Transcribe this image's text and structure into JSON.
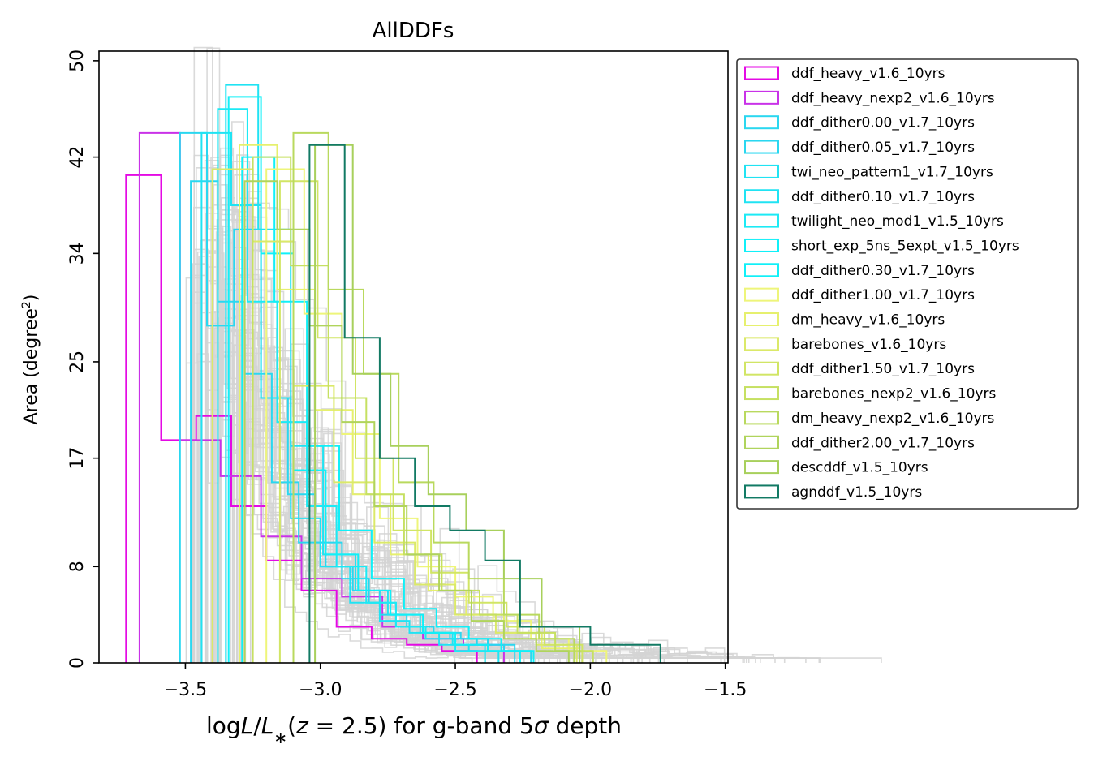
{
  "chart_data": {
    "type": "histogram-step",
    "title": "AllDDFs",
    "xlabel": "logL/L∗(z = 2.5) for g-band 5σ depth",
    "xlabel_parts": [
      "log",
      "L",
      "/",
      "L",
      "∗",
      "(",
      "z",
      " = 2.5) for g-band 5",
      "σ",
      " depth"
    ],
    "ylabel": "Area (degree",
    "ylabel_sup": "2",
    "ylabel_close": ")",
    "xlim": [
      -3.82,
      -1.49
    ],
    "ylim": [
      0,
      50.8
    ],
    "xticks": [
      -3.5,
      -3.0,
      -2.5,
      -2.0,
      -1.5
    ],
    "xtick_labels": [
      "−3.5",
      "−3.0",
      "−2.5",
      "−2.0",
      "−1.5"
    ],
    "yticks": [
      0,
      8,
      17,
      25,
      34,
      42,
      50
    ],
    "ytick_labels": [
      "0",
      "8",
      "17",
      "25",
      "34",
      "42",
      "50"
    ],
    "grid": false,
    "legend_position": "outside-right-top",
    "background_series_color": "#d3d3d3",
    "series": [
      {
        "name": "ddf_heavy_v1.6_10yrs",
        "color": "#e40ae4",
        "edges": [
          -3.72,
          -3.59,
          -3.46,
          -3.33,
          -3.2,
          -3.07,
          -2.94,
          -2.81,
          -2.68,
          -2.55,
          -2.42
        ],
        "values": [
          40.5,
          18.5,
          20.5,
          13,
          8.5,
          6,
          3,
          2,
          1.5,
          1
        ]
      },
      {
        "name": "ddf_heavy_nexp2_v1.6_10yrs",
        "color": "#c932e8",
        "edges": [
          -3.67,
          -3.52,
          -3.37,
          -3.22,
          -3.07,
          -2.92,
          -2.77,
          -2.62,
          -2.47,
          -2.32
        ],
        "values": [
          44,
          18.5,
          15.5,
          10.5,
          7,
          5.5,
          3,
          2,
          1.5
        ]
      },
      {
        "name": "ddf_dither0.00_v1.7_10yrs",
        "color": "#2ad7f0",
        "edges": [
          -3.52,
          -3.42,
          -3.32,
          -3.22,
          -3.12,
          -3.02,
          -2.92,
          -2.82,
          -2.72,
          -2.62,
          -2.52,
          -2.42,
          -2.32,
          -2.22
        ],
        "values": [
          44,
          28,
          36,
          22,
          14,
          10,
          7,
          5,
          3,
          2.5,
          2,
          1.5,
          1
        ]
      },
      {
        "name": "ddf_dither0.05_v1.7_10yrs",
        "color": "#2ad7f0",
        "edges": [
          -3.48,
          -3.38,
          -3.28,
          -3.18,
          -3.08,
          -2.98,
          -2.88,
          -2.78,
          -2.68,
          -2.58,
          -2.48,
          -2.38,
          -2.28
        ],
        "values": [
          40,
          30,
          24,
          15,
          10,
          8,
          6,
          4,
          3,
          2.5,
          2,
          1.5
        ]
      },
      {
        "name": "twi_neo_pattern1_v1.7_10yrs",
        "color": "#20e3f3",
        "edges": [
          -3.35,
          -3.23,
          -3.11,
          -2.99,
          -2.87,
          -2.75,
          -2.63,
          -2.51,
          -2.39
        ],
        "values": [
          48,
          36,
          18,
          9,
          6,
          4,
          2.5,
          1.5
        ]
      },
      {
        "name": "ddf_dither0.10_v1.7_10yrs",
        "color": "#20e3f3",
        "edges": [
          -3.44,
          -3.33,
          -3.22,
          -3.11,
          -3.0,
          -2.89,
          -2.78,
          -2.67,
          -2.56,
          -2.45,
          -2.34
        ],
        "values": [
          44,
          38,
          22,
          12,
          8,
          5,
          3.5,
          2.5,
          1.5,
          1
        ]
      },
      {
        "name": "twilight_neo_mod1_v1.5_10yrs",
        "color": "#1ceaf5",
        "edges": [
          -3.38,
          -3.27,
          -3.16,
          -3.05,
          -2.94,
          -2.83,
          -2.72,
          -2.61,
          -2.5,
          -2.39
        ],
        "values": [
          46,
          30,
          20,
          13,
          8,
          5,
          3,
          2,
          1
        ]
      },
      {
        "name": "short_exp_5ns_5expt_v1.5_10yrs",
        "color": "#10f0f8",
        "edges": [
          -3.34,
          -3.22,
          -3.1,
          -2.98,
          -2.86,
          -2.74,
          -2.62,
          -2.5,
          -2.38,
          -2.26
        ],
        "values": [
          47,
          34,
          16,
          9,
          6,
          4,
          2.5,
          1.5,
          1
        ]
      },
      {
        "name": "ddf_dither0.30_v1.7_10yrs",
        "color": "#10f0f8",
        "edges": [
          -3.29,
          -3.17,
          -3.05,
          -2.93,
          -2.81,
          -2.69,
          -2.57,
          -2.45,
          -2.33,
          -2.21
        ],
        "values": [
          42,
          30,
          18,
          11,
          7,
          4.5,
          3,
          2,
          1
        ]
      },
      {
        "name": "ddf_dither1.00_v1.7_10yrs",
        "color": "#eef57a",
        "edges": [
          -3.2,
          -3.06,
          -2.92,
          -2.78,
          -2.64,
          -2.5,
          -2.36,
          -2.22,
          -2.08,
          -1.94
        ],
        "values": [
          41,
          29,
          19,
          12,
          8,
          5.5,
          3.5,
          2,
          1
        ]
      },
      {
        "name": "dm_heavy_v1.6_10yrs",
        "color": "#e6f06e",
        "edges": [
          -3.3,
          -3.16,
          -3.02,
          -2.88,
          -2.74,
          -2.6,
          -2.46,
          -2.32,
          -2.18,
          -2.04
        ],
        "values": [
          43,
          31,
          21,
          14,
          9,
          6,
          4,
          2.5,
          1.2
        ]
      },
      {
        "name": "barebones_v1.6_10yrs",
        "color": "#dbe969",
        "edges": [
          -3.4,
          -3.25,
          -3.1,
          -2.95,
          -2.8,
          -2.65,
          -2.5,
          -2.35,
          -2.2,
          -2.05
        ],
        "values": [
          41,
          35,
          23,
          15,
          10,
          6.5,
          4,
          2.5,
          1.5
        ]
      },
      {
        "name": "ddf_dither1.50_v1.7_10yrs",
        "color": "#d1e565",
        "edges": [
          -3.15,
          -3.01,
          -2.87,
          -2.73,
          -2.59,
          -2.45,
          -2.31,
          -2.17,
          -2.03
        ],
        "values": [
          40,
          27,
          17,
          11,
          7.5,
          5,
          3,
          1.5
        ]
      },
      {
        "name": "barebones_nexp2_v1.6_10yrs",
        "color": "#c6e062",
        "edges": [
          -3.25,
          -3.11,
          -2.97,
          -2.83,
          -2.69,
          -2.55,
          -2.41,
          -2.27,
          -2.13,
          -1.99
        ],
        "values": [
          42,
          33,
          22,
          14,
          9,
          6,
          4,
          2.5,
          1
        ]
      },
      {
        "name": "dm_heavy_nexp2_v1.6_10yrs",
        "color": "#b9d95e",
        "edges": [
          -3.1,
          -2.97,
          -2.84,
          -2.71,
          -2.58,
          -2.45,
          -2.32,
          -2.19,
          -2.06
        ],
        "values": [
          44,
          31,
          24,
          15,
          10,
          7,
          4,
          2
        ]
      },
      {
        "name": "ddf_dither2.00_v1.7_10yrs",
        "color": "#b0d45c",
        "edges": [
          -3.28,
          -3.16,
          -3.04,
          -2.92,
          -2.8,
          -2.68,
          -2.56,
          -2.44,
          -2.32,
          -2.2,
          -2.08
        ],
        "values": [
          40,
          36,
          28,
          20,
          13,
          9,
          6,
          3.5,
          2,
          1
        ]
      },
      {
        "name": "descddf_v1.5_10yrs",
        "color": "#a8d05c",
        "edges": [
          -3.02,
          -2.88,
          -2.74,
          -2.6,
          -2.46,
          -2.32,
          -2.18,
          -2.04
        ],
        "values": [
          43,
          24,
          18,
          14,
          11,
          7,
          3
        ]
      },
      {
        "name": "agnddf_v1.5_10yrs",
        "color": "#127a64",
        "edges": [
          -3.04,
          -2.91,
          -2.78,
          -2.65,
          -2.52,
          -2.39,
          -2.26,
          -2.13,
          -2.0,
          -1.87,
          -1.74
        ],
        "values": [
          43,
          27,
          17,
          13,
          11,
          8.5,
          3,
          3,
          1.5,
          1.5
        ]
      }
    ]
  }
}
